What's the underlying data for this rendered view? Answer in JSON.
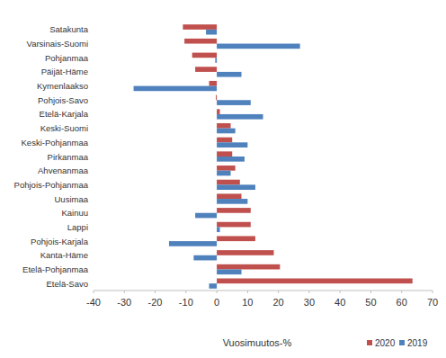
{
  "chart_data": {
    "type": "bar",
    "orientation": "horizontal",
    "x_label": "Vuosimuutos-%",
    "categories": [
      "Satakunta",
      "Varsinais-Suomi",
      "Pohjanmaa",
      "Päijät-Häme",
      "Kymenlaakso",
      "Pohjois-Savo",
      "Etelä-Karjala",
      "Keski-Suomi",
      "Keski-Pohjanmaa",
      "Pirkanmaa",
      "Ahvenanmaa",
      "Pohjois-Pohjanmaa",
      "Uusimaa",
      "Kainuu",
      "Lappi",
      "Pohjois-Karjala",
      "Kanta-Häme",
      "Etelä-Pohjanmaa",
      "Etelä-Savo"
    ],
    "series": [
      {
        "name": "2020",
        "color": "#c0504d",
        "values": [
          -11,
          -10.5,
          -8,
          -7,
          -2.5,
          -0.3,
          1,
          4.5,
          5,
          5,
          6,
          7.5,
          8,
          11,
          11,
          12.5,
          18.5,
          20.5,
          63.5
        ]
      },
      {
        "name": "2019",
        "color": "#4f81bd",
        "values": [
          -3.5,
          27,
          -0.5,
          8,
          -27,
          11,
          15,
          6,
          10,
          9,
          4.5,
          12.5,
          10,
          -7,
          1,
          -15.5,
          -7.5,
          8,
          -2.5
        ]
      }
    ],
    "xlim": [
      -40,
      70
    ],
    "xticks": [
      -40,
      -30,
      -20,
      -10,
      0,
      10,
      20,
      30,
      40,
      50,
      60,
      70
    ],
    "grid": false,
    "legend": "bottom-right"
  }
}
